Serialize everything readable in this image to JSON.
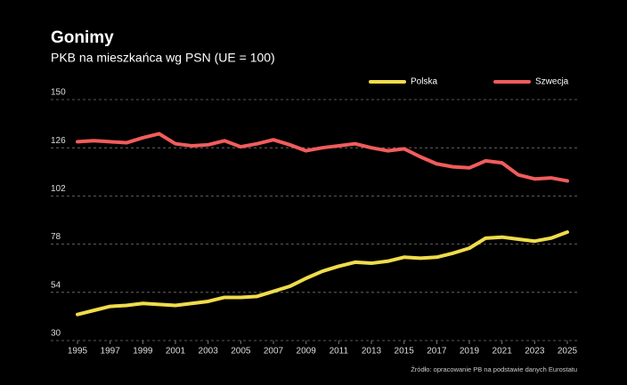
{
  "chart_data": {
    "type": "line",
    "title": "Gonimy",
    "subtitle": "PKB na mieszkańca wg PSN (UE = 100)",
    "source": "Źródło: opracowanie PB na podstawie danych Eurostatu",
    "x": [
      1995,
      1996,
      1997,
      1998,
      1999,
      2000,
      2001,
      2002,
      2003,
      2004,
      2005,
      2006,
      2007,
      2008,
      2009,
      2010,
      2011,
      2012,
      2013,
      2014,
      2015,
      2016,
      2017,
      2018,
      2019,
      2020,
      2021,
      2022,
      2023,
      2024,
      2025
    ],
    "series": [
      {
        "name": "Polska",
        "color": "#f0dc4b",
        "values": [
          43,
          45,
          47,
          47.5,
          48.5,
          48,
          47.5,
          48.5,
          49.5,
          51.5,
          51.5,
          52,
          54.5,
          57,
          61,
          64.5,
          67,
          69,
          68.5,
          69.5,
          71.5,
          71,
          71.5,
          73.5,
          76,
          81,
          81.5,
          80.5,
          79.5,
          81,
          84
        ]
      },
      {
        "name": "Szwecja",
        "color": "#f25c5c",
        "values": [
          129,
          129.5,
          129,
          128.5,
          131,
          133,
          128,
          127,
          127.5,
          129.5,
          126.5,
          128,
          130,
          127.5,
          124.5,
          126,
          127,
          128,
          126,
          124.5,
          125.5,
          121.5,
          118,
          116.5,
          116,
          119.5,
          118.5,
          112.5,
          110.5,
          111,
          109.5
        ]
      }
    ],
    "xlim": [
      1995,
      2025
    ],
    "xticks": [
      1995,
      1997,
      1999,
      2001,
      2003,
      2005,
      2007,
      2009,
      2011,
      2013,
      2015,
      2017,
      2019,
      2021,
      2023,
      2025
    ],
    "ylim": [
      30,
      150
    ],
    "yticks": [
      30,
      54,
      78,
      102,
      126,
      150
    ],
    "grid": true,
    "legend": "top-right"
  }
}
